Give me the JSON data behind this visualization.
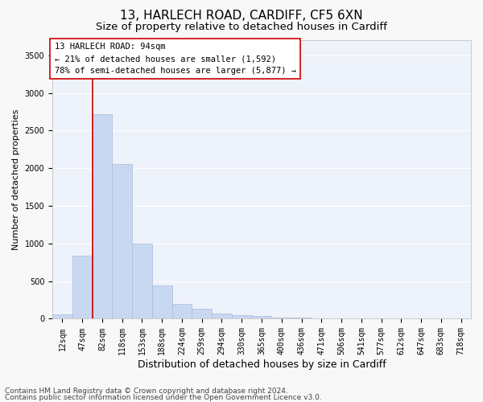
{
  "title1": "13, HARLECH ROAD, CARDIFF, CF5 6XN",
  "title2": "Size of property relative to detached houses in Cardiff",
  "xlabel": "Distribution of detached houses by size in Cardiff",
  "ylabel": "Number of detached properties",
  "categories": [
    "12sqm",
    "47sqm",
    "82sqm",
    "118sqm",
    "153sqm",
    "188sqm",
    "224sqm",
    "259sqm",
    "294sqm",
    "330sqm",
    "365sqm",
    "400sqm",
    "436sqm",
    "471sqm",
    "506sqm",
    "541sqm",
    "577sqm",
    "612sqm",
    "647sqm",
    "683sqm",
    "718sqm"
  ],
  "values": [
    60,
    840,
    2720,
    2060,
    1000,
    440,
    200,
    130,
    70,
    50,
    35,
    20,
    15,
    10,
    8,
    5,
    4,
    3,
    2,
    2,
    1
  ],
  "bar_color": "#c8d8f0",
  "bar_edge_color": "#aabbd8",
  "vline_color": "#cc0000",
  "vline_x_index": 1.5,
  "annotation_text": "13 HARLECH ROAD: 94sqm\n← 21% of detached houses are smaller (1,592)\n78% of semi-detached houses are larger (5,877) →",
  "annotation_box_facecolor": "#ffffff",
  "annotation_box_edgecolor": "#cc0000",
  "ylim": [
    0,
    3700
  ],
  "yticks": [
    0,
    500,
    1000,
    1500,
    2000,
    2500,
    3000,
    3500
  ],
  "footer1": "Contains HM Land Registry data © Crown copyright and database right 2024.",
  "footer2": "Contains public sector information licensed under the Open Government Licence v3.0.",
  "bg_color": "#f8f8f8",
  "plot_bg": "#eef2fa",
  "grid_color": "#ffffff",
  "title1_fontsize": 11,
  "title2_fontsize": 9.5,
  "xlabel_fontsize": 9,
  "ylabel_fontsize": 8,
  "tick_fontsize": 7,
  "annotation_fontsize": 7.5,
  "footer_fontsize": 6.5
}
